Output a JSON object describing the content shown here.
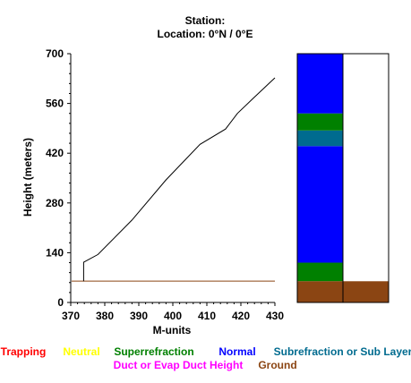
{
  "header": {
    "station_line": "Station:",
    "location_line": "Location:   0°N /   0°E"
  },
  "chart_data": {
    "type": "line",
    "xlabel": "M-units",
    "ylabel": "Height (meters)",
    "xlim": [
      370,
      430
    ],
    "ylim": [
      0,
      700
    ],
    "x_ticks": [
      "370",
      "380",
      "390",
      "400",
      "410",
      "420",
      "430"
    ],
    "y_ticks": [
      "0",
      "140",
      "280",
      "420",
      "560",
      "700"
    ],
    "series": [
      {
        "color": "#000000",
        "points": [
          {
            "x": 373.8,
            "y": 60
          },
          {
            "x": 373.8,
            "y": 113
          },
          {
            "x": 378,
            "y": 135
          },
          {
            "x": 388,
            "y": 232
          },
          {
            "x": 398,
            "y": 345
          },
          {
            "x": 408,
            "y": 445
          },
          {
            "x": 415.5,
            "y": 488
          },
          {
            "x": 419,
            "y": 532
          },
          {
            "x": 424,
            "y": 578
          },
          {
            "x": 430,
            "y": 632
          }
        ]
      }
    ],
    "ground_line": {
      "y": 60,
      "color": "#8b4513"
    },
    "layer_columns": [
      {
        "name": "column-1",
        "layers": [
          {
            "from": 0,
            "to": 60,
            "type": "Ground",
            "color": "#8b4513"
          },
          {
            "from": 60,
            "to": 112,
            "type": "Superrefraction",
            "color": "#008000"
          },
          {
            "from": 112,
            "to": 440,
            "type": "Normal",
            "color": "#0000ff"
          },
          {
            "from": 440,
            "to": 484,
            "type": "Subrefraction or Sub Layer",
            "color": "#006b8f"
          },
          {
            "from": 484,
            "to": 532,
            "type": "Superrefraction",
            "color": "#008000"
          },
          {
            "from": 532,
            "to": 700,
            "type": "Normal",
            "color": "#0000ff"
          }
        ]
      },
      {
        "name": "column-2",
        "layers": [
          {
            "from": 0,
            "to": 60,
            "type": "Ground",
            "color": "#8b4513"
          },
          {
            "from": 60,
            "to": 700,
            "type": "none",
            "color": "#ffffff"
          }
        ]
      }
    ],
    "legend": [
      {
        "label": "Trapping",
        "color": "#ff0000"
      },
      {
        "label": "Neutral",
        "color": "#ffff00"
      },
      {
        "label": "Superrefraction",
        "color": "#008000"
      },
      {
        "label": "Normal",
        "color": "#0000ff"
      },
      {
        "label": "Subrefraction or Sub Layer",
        "color": "#006b8f"
      },
      {
        "label": "Duct or Evap Duct Height",
        "color": "#ff00ff"
      },
      {
        "label": "Ground",
        "color": "#8b4513"
      }
    ]
  }
}
